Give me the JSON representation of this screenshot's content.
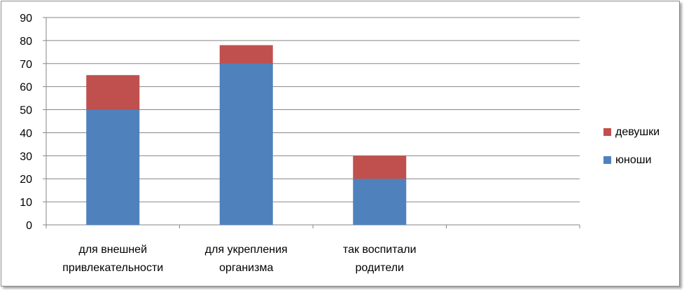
{
  "chart_data": {
    "type": "bar",
    "stacked": true,
    "categories": [
      [
        "для внешней",
        "привлекательности"
      ],
      [
        "для укрепления",
        "организма"
      ],
      [
        "так воспитали",
        "родители"
      ],
      [
        ""
      ]
    ],
    "series": [
      {
        "name": "юноши",
        "values": [
          50,
          70,
          20,
          null
        ],
        "color": "#4f81bd"
      },
      {
        "name": "девушки",
        "values": [
          15,
          8,
          10,
          null
        ],
        "color": "#c0504d"
      }
    ],
    "ylim": [
      0,
      90
    ],
    "ytick_step": 10,
    "yticks": [
      "0",
      "10",
      "20",
      "30",
      "40",
      "50",
      "60",
      "70",
      "80",
      "90"
    ],
    "grid": true,
    "legend_position": "right"
  }
}
